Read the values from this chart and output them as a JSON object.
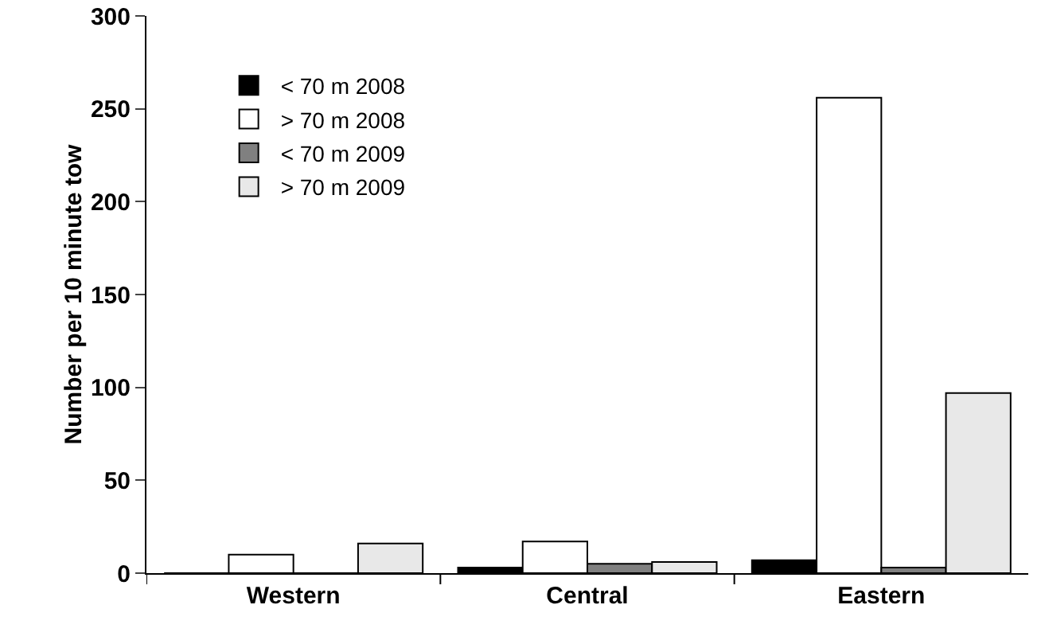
{
  "chart_data": {
    "type": "bar",
    "ylabel": "Number per 10 minute tow",
    "categories": [
      "Western",
      "Central",
      "Eastern"
    ],
    "series": [
      {
        "name": "< 70 m 2008",
        "color": "#000000",
        "values": [
          0,
          3,
          7
        ]
      },
      {
        "name": "> 70 m 2008",
        "color": "#ffffff",
        "values": [
          10,
          17,
          256
        ]
      },
      {
        "name": "< 70 m 2009",
        "color": "#808080",
        "values": [
          0,
          5,
          3
        ]
      },
      {
        "name": "> 70 m 2009",
        "color": "#e8e8e8",
        "values": [
          16,
          6,
          97
        ]
      }
    ],
    "ylim": [
      0,
      300
    ],
    "yticks": [
      0,
      50,
      100,
      150,
      200,
      250,
      300
    ],
    "grid": false,
    "legend": "top left"
  }
}
